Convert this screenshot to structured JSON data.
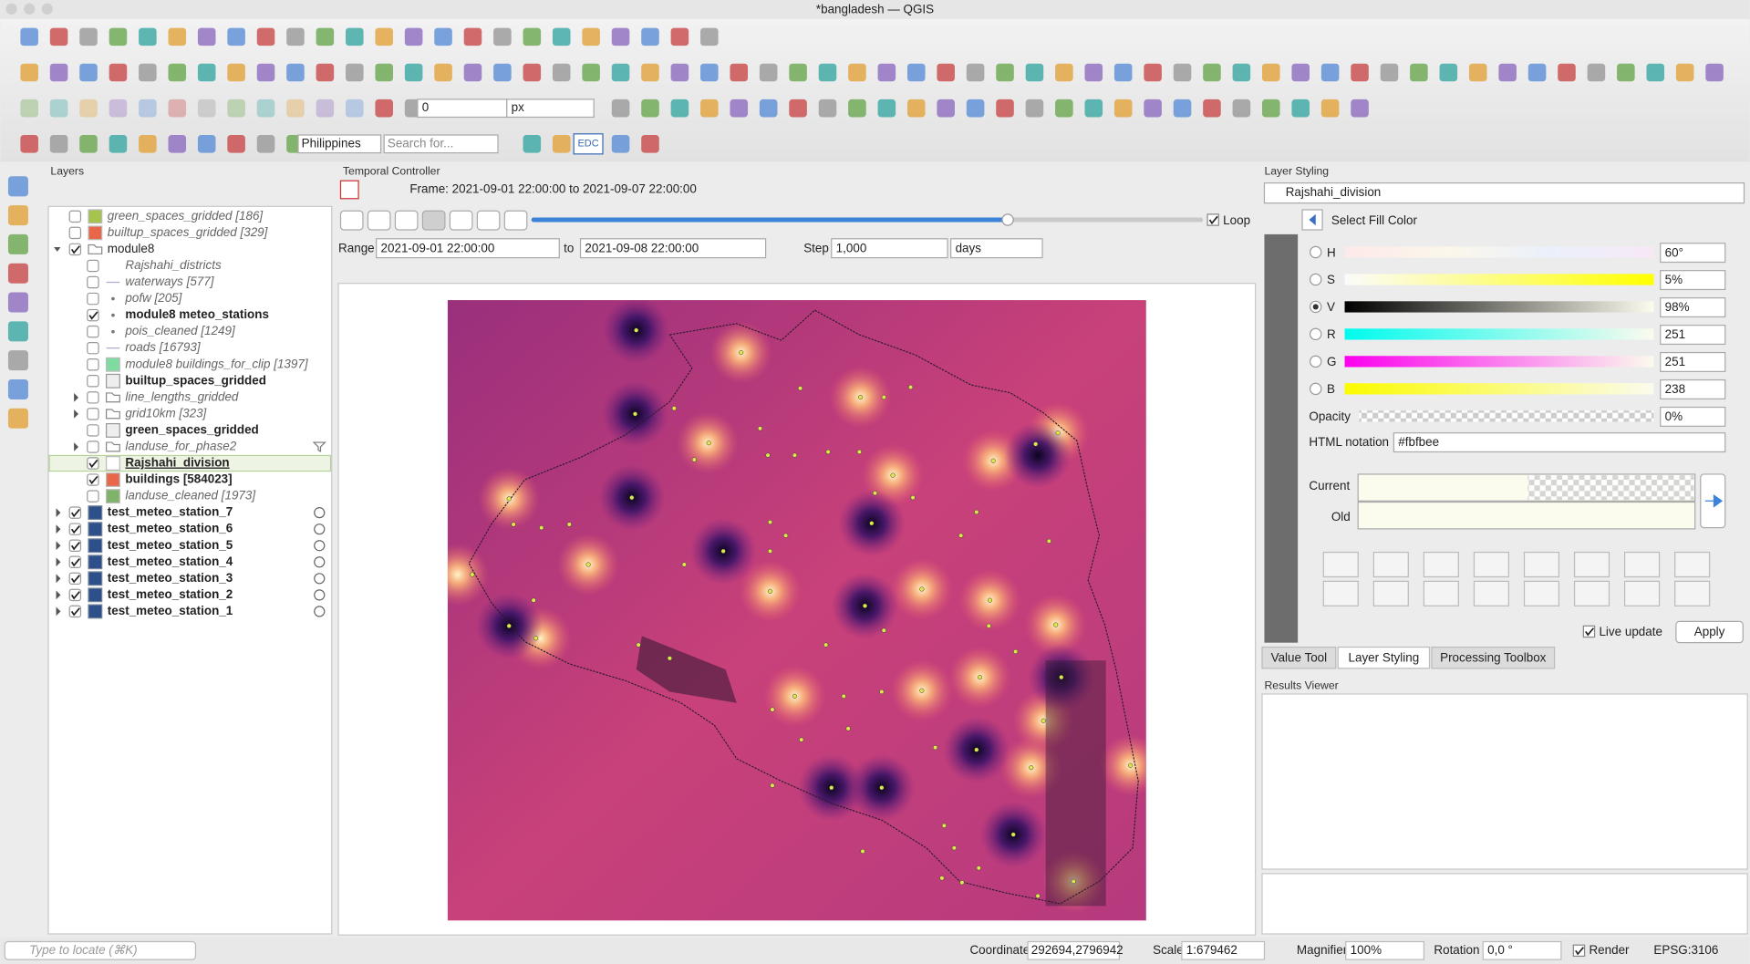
{
  "window": {
    "title": "*bangladesh — QGIS"
  },
  "toolbar": {
    "offset": "0",
    "unit": "px",
    "locale": "Philippines",
    "search_placeholder": "Search for...",
    "edc_button": "EDC"
  },
  "layers_panel": {
    "title": "Layers",
    "layers": [
      {
        "name": "green_spaces_gridded [186]",
        "checked": false,
        "style": "italic",
        "icon": "swatch",
        "color": "#a6c34d"
      },
      {
        "name": "builtup_spaces_gridded [329]",
        "checked": false,
        "style": "italic",
        "icon": "swatch",
        "color": "#e8674a"
      },
      {
        "name": "module8",
        "checked": true,
        "style": "normal",
        "icon": "group",
        "children": [
          {
            "name": "Rajshahi_districts",
            "checked": false,
            "style": "italic",
            "icon": "none"
          },
          {
            "name": "waterways [577]",
            "checked": false,
            "style": "italic",
            "icon": "line"
          },
          {
            "name": "pofw [205]",
            "checked": false,
            "style": "italic",
            "icon": "point"
          },
          {
            "name": "module8 meteo_stations",
            "checked": true,
            "style": "bold",
            "icon": "point"
          },
          {
            "name": "pois_cleaned [1249]",
            "checked": false,
            "style": "italic",
            "icon": "point"
          },
          {
            "name": "roads [16793]",
            "checked": false,
            "style": "italic",
            "icon": "line"
          },
          {
            "name": "module8 buildings_for_clip [1397]",
            "checked": false,
            "style": "italic",
            "icon": "swatch",
            "color": "#7fdca0"
          },
          {
            "name": "builtup_spaces_gridded",
            "checked": false,
            "style": "bold",
            "icon": "raster"
          },
          {
            "name": "line_lengths_gridded",
            "checked": false,
            "style": "italic",
            "icon": "group",
            "collapsed": true
          },
          {
            "name": "grid10km [323]",
            "checked": false,
            "style": "italic",
            "icon": "group",
            "collapsed": true
          },
          {
            "name": "green_spaces_gridded",
            "checked": false,
            "style": "bold",
            "icon": "raster"
          },
          {
            "name": "landuse_for_phase2",
            "checked": false,
            "style": "italic",
            "icon": "group",
            "collapsed": true,
            "filtered": true
          },
          {
            "name": "Rajshahi_division",
            "checked": true,
            "style": "selected",
            "icon": "swatch",
            "color": "#ffffff"
          },
          {
            "name": "buildings [584023]",
            "checked": true,
            "style": "bold",
            "icon": "swatch",
            "color": "#e8674a"
          },
          {
            "name": "landuse_cleaned [1973]",
            "checked": false,
            "style": "italic",
            "icon": "swatch",
            "color": "#7fb36a"
          }
        ]
      },
      {
        "name": "test_meteo_station_7",
        "checked": true,
        "style": "bold",
        "icon": "mesh",
        "collapsed": true,
        "temporal": true
      },
      {
        "name": "test_meteo_station_6",
        "checked": true,
        "style": "bold",
        "icon": "mesh",
        "collapsed": true,
        "temporal": true
      },
      {
        "name": "test_meteo_station_5",
        "checked": true,
        "style": "bold",
        "icon": "mesh",
        "collapsed": true,
        "temporal": true
      },
      {
        "name": "test_meteo_station_4",
        "checked": true,
        "style": "bold",
        "icon": "mesh",
        "collapsed": true,
        "temporal": true
      },
      {
        "name": "test_meteo_station_3",
        "checked": true,
        "style": "bold",
        "icon": "mesh",
        "collapsed": true,
        "temporal": true
      },
      {
        "name": "test_meteo_station_2",
        "checked": true,
        "style": "bold",
        "icon": "mesh",
        "collapsed": true,
        "temporal": true
      },
      {
        "name": "test_meteo_station_1",
        "checked": true,
        "style": "bold",
        "icon": "mesh",
        "collapsed": true,
        "temporal": true
      }
    ]
  },
  "temporal_controller": {
    "title": "Temporal Controller",
    "frame": "Frame: 2021-09-01 22:00:00 to 2021-09-07 22:00:00",
    "loop": "Loop",
    "range_label": "Range",
    "range_start": "2021-09-01 22:00:00",
    "to_label": "to",
    "range_end": "2021-09-08 22:00:00",
    "step_label": "Step",
    "step": "1,000",
    "step_unit": "days"
  },
  "layer_styling": {
    "title": "Layer Styling",
    "layer": "Rajshahi_division",
    "heading": "Select Fill Color",
    "channels": [
      {
        "label": "H",
        "value": "60°",
        "gradient": [
          "#fde9ea",
          "#fbf7ea",
          "#eaf0fb",
          "#f8e8f6"
        ],
        "selected": false
      },
      {
        "label": "S",
        "value": "5%",
        "gradient": [
          "#fbfbfb",
          "#ffff00"
        ],
        "selected": false
      },
      {
        "label": "V",
        "value": "98%",
        "gradient": [
          "#000000",
          "#fbfbee"
        ],
        "selected": true
      },
      {
        "label": "R",
        "value": "251",
        "gradient": [
          "#00fbee",
          "#fbfbee"
        ],
        "selected": false
      },
      {
        "label": "G",
        "value": "251",
        "gradient": [
          "#fb00ee",
          "#fbfbee"
        ],
        "selected": false
      },
      {
        "label": "B",
        "value": "238",
        "gradient": [
          "#fbfb00",
          "#fbfbee"
        ],
        "selected": false
      }
    ],
    "opacity_label": "Opacity",
    "opacity": "0%",
    "html_label": "HTML notation",
    "html": "#fbfbee",
    "current_label": "Current",
    "old_label": "Old",
    "color": "#fbfbee",
    "live_update": "Live update",
    "apply": "Apply"
  },
  "tabs": [
    "Value Tool",
    "Layer Styling",
    "Processing Toolbox"
  ],
  "results_viewer": {
    "title": "Results Viewer"
  },
  "status_bar": {
    "locate": "Type to locate (⌘K)",
    "coordinate_label": "Coordinate",
    "coordinate": "292694,2796942",
    "scale_label": "Scale",
    "scale": "1:679462",
    "magnifier_label": "Magnifier",
    "magnifier": "100%",
    "rotation_label": "Rotation",
    "rotation": "0,0 °",
    "render": "Render",
    "crs": "EPSG:3106"
  }
}
